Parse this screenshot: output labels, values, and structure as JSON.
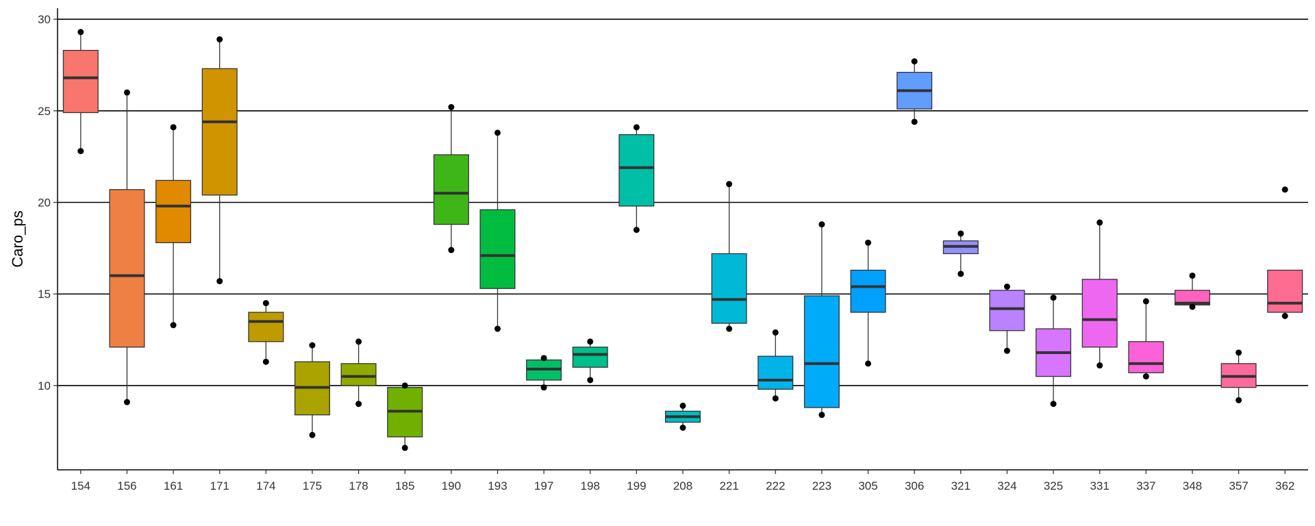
{
  "chart_data": {
    "type": "boxplot",
    "title": "",
    "xlabel": "",
    "ylabel": "Caro_ps",
    "ylim": [
      5.4,
      30.6
    ],
    "yticks": [
      10,
      15,
      20,
      25,
      30
    ],
    "grid": "horizontal major",
    "legend": "none",
    "categories": [
      "154",
      "156",
      "161",
      "171",
      "174",
      "175",
      "178",
      "185",
      "190",
      "193",
      "197",
      "198",
      "199",
      "208",
      "221",
      "222",
      "223",
      "305",
      "306",
      "321",
      "324",
      "325",
      "331",
      "337",
      "348",
      "357",
      "362"
    ],
    "colors": [
      "#F8766D",
      "#EE8043",
      "#E18A00",
      "#D09400",
      "#BE9C00",
      "#AAA300",
      "#91AA00",
      "#72B000",
      "#3FB618",
      "#00BC3F",
      "#00BF67",
      "#00BF8A",
      "#00BFA7",
      "#00BDC0",
      "#00B9D6",
      "#00B3E9",
      "#00ABF9",
      "#00A0FF",
      "#619CFF",
      "#9590FF",
      "#BA82FF",
      "#D875FF",
      "#EE67F1",
      "#FB62DA",
      "#FF63BE",
      "#FF6A9E",
      "#FF6C91"
    ],
    "boxes": [
      {
        "category": "154",
        "whisker_low": 22.8,
        "q1": 24.9,
        "median": 26.8,
        "q3": 28.3,
        "whisker_high": 29.3,
        "points": [
          29.3,
          22.8
        ]
      },
      {
        "category": "156",
        "whisker_low": 9.1,
        "q1": 12.1,
        "median": 16.0,
        "q3": 20.7,
        "whisker_high": 26.0,
        "points": [
          26.0,
          9.1
        ]
      },
      {
        "category": "161",
        "whisker_low": 13.3,
        "q1": 17.8,
        "median": 19.8,
        "q3": 21.2,
        "whisker_high": 24.1,
        "points": [
          24.1,
          13.3
        ]
      },
      {
        "category": "171",
        "whisker_low": 15.7,
        "q1": 20.4,
        "median": 24.4,
        "q3": 27.3,
        "whisker_high": 28.9,
        "points": [
          28.9,
          15.7
        ]
      },
      {
        "category": "174",
        "whisker_low": 11.3,
        "q1": 12.4,
        "median": 13.5,
        "q3": 14.0,
        "whisker_high": 14.5,
        "points": [
          14.5,
          11.3
        ]
      },
      {
        "category": "175",
        "whisker_low": 7.3,
        "q1": 8.4,
        "median": 9.9,
        "q3": 11.3,
        "whisker_high": 12.2,
        "points": [
          12.2,
          7.3
        ]
      },
      {
        "category": "178",
        "whisker_low": 9.0,
        "q1": 10.0,
        "median": 10.5,
        "q3": 11.2,
        "whisker_high": 12.4,
        "points": [
          12.4,
          9.0
        ]
      },
      {
        "category": "185",
        "whisker_low": 6.6,
        "q1": 7.2,
        "median": 8.6,
        "q3": 9.9,
        "whisker_high": 10.0,
        "points": [
          10.0,
          6.6
        ]
      },
      {
        "category": "190",
        "whisker_low": 17.4,
        "q1": 18.8,
        "median": 20.5,
        "q3": 22.6,
        "whisker_high": 25.2,
        "points": [
          25.2,
          17.4
        ]
      },
      {
        "category": "193",
        "whisker_low": 13.1,
        "q1": 15.3,
        "median": 17.1,
        "q3": 19.6,
        "whisker_high": 23.8,
        "points": [
          23.8,
          13.1
        ]
      },
      {
        "category": "197",
        "whisker_low": 9.9,
        "q1": 10.3,
        "median": 10.9,
        "q3": 11.4,
        "whisker_high": 11.5,
        "points": [
          11.5,
          9.9
        ]
      },
      {
        "category": "198",
        "whisker_low": 10.3,
        "q1": 11.0,
        "median": 11.7,
        "q3": 12.1,
        "whisker_high": 12.4,
        "points": [
          12.4,
          10.3
        ]
      },
      {
        "category": "199",
        "whisker_low": 18.5,
        "q1": 19.8,
        "median": 21.9,
        "q3": 23.7,
        "whisker_high": 24.1,
        "points": [
          24.1,
          18.5
        ]
      },
      {
        "category": "208",
        "whisker_low": 7.7,
        "q1": 8.0,
        "median": 8.3,
        "q3": 8.6,
        "whisker_high": 8.9,
        "points": [
          8.9,
          7.7
        ]
      },
      {
        "category": "221",
        "whisker_low": 13.1,
        "q1": 13.4,
        "median": 14.7,
        "q3": 17.2,
        "whisker_high": 21.0,
        "points": [
          21.0,
          13.1
        ]
      },
      {
        "category": "222",
        "whisker_low": 9.3,
        "q1": 9.8,
        "median": 10.3,
        "q3": 11.6,
        "whisker_high": 12.9,
        "points": [
          12.9,
          9.3
        ]
      },
      {
        "category": "223",
        "whisker_low": 8.4,
        "q1": 8.8,
        "median": 11.2,
        "q3": 14.9,
        "whisker_high": 18.8,
        "points": [
          18.8,
          8.4
        ]
      },
      {
        "category": "305",
        "whisker_low": 11.2,
        "q1": 14.0,
        "median": 15.4,
        "q3": 16.3,
        "whisker_high": 17.8,
        "points": [
          17.8,
          11.2
        ]
      },
      {
        "category": "306",
        "whisker_low": 24.4,
        "q1": 25.1,
        "median": 26.1,
        "q3": 27.1,
        "whisker_high": 27.7,
        "points": [
          27.7,
          24.4
        ]
      },
      {
        "category": "321",
        "whisker_low": 16.1,
        "q1": 17.2,
        "median": 17.6,
        "q3": 17.9,
        "whisker_high": 18.3,
        "points": [
          18.3,
          16.1
        ]
      },
      {
        "category": "324",
        "whisker_low": 11.9,
        "q1": 13.0,
        "median": 14.2,
        "q3": 15.2,
        "whisker_high": 15.4,
        "points": [
          15.4,
          11.9
        ]
      },
      {
        "category": "325",
        "whisker_low": 9.0,
        "q1": 10.5,
        "median": 11.8,
        "q3": 13.1,
        "whisker_high": 14.8,
        "points": [
          14.8,
          9.0
        ]
      },
      {
        "category": "331",
        "whisker_low": 11.1,
        "q1": 12.1,
        "median": 13.6,
        "q3": 15.8,
        "whisker_high": 18.9,
        "points": [
          18.9,
          11.1
        ]
      },
      {
        "category": "337",
        "whisker_low": 10.5,
        "q1": 10.7,
        "median": 11.2,
        "q3": 12.4,
        "whisker_high": 14.6,
        "points": [
          14.6,
          10.5
        ]
      },
      {
        "category": "348",
        "whisker_low": 14.3,
        "q1": 14.4,
        "median": 14.5,
        "q3": 15.2,
        "whisker_high": 16.0,
        "points": [
          16.0,
          14.3
        ]
      },
      {
        "category": "357",
        "whisker_low": 9.2,
        "q1": 9.9,
        "median": 10.5,
        "q3": 11.2,
        "whisker_high": 11.8,
        "points": [
          11.8,
          9.2
        ]
      },
      {
        "category": "362",
        "whisker_low": 13.8,
        "q1": 14.0,
        "median": 14.5,
        "q3": 16.3,
        "whisker_high": 16.3,
        "points": [
          20.7,
          13.8
        ]
      }
    ]
  }
}
